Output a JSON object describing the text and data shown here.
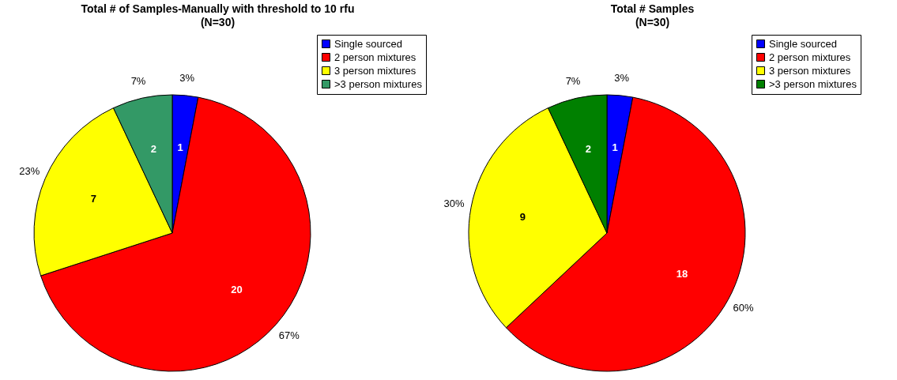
{
  "chart_data": [
    {
      "type": "pie",
      "title": "Total # of Samples-Manually with threshold to 10 rfu",
      "subtitle": "(N=30)",
      "categories": [
        "Single sourced",
        "2 person mixtures",
        "3 person mixtures",
        ">3 person mixtures"
      ],
      "values": [
        3,
        67,
        23,
        7
      ],
      "colors": [
        "#0000ff",
        "#ff0000",
        "#ffff00",
        "#339966"
      ],
      "value_labels": [
        "3%",
        "67%",
        "23%",
        "7%"
      ],
      "legend": "top right",
      "annotations": [
        {
          "text": "1",
          "x": "Single sourced"
        },
        {
          "text": "20",
          "x": "2 person mixtures"
        },
        {
          "text": "7",
          "x": "3 person mixtures"
        },
        {
          "text": "2",
          "x": ">3 person mixtures"
        }
      ]
    },
    {
      "type": "pie",
      "title": "Total # Samples",
      "subtitle": "(N=30)",
      "categories": [
        "Single sourced",
        "2 person mixtures",
        "3 person mixtures",
        ">3 person mixtures"
      ],
      "values": [
        3,
        60,
        30,
        7
      ],
      "colors": [
        "#0000ff",
        "#ff0000",
        "#ffff00",
        "#008000"
      ],
      "value_labels": [
        "3%",
        "60%",
        "30%",
        "7%"
      ],
      "legend": "top right",
      "annotations": [
        {
          "text": "1",
          "x": "Single sourced"
        },
        {
          "text": "18",
          "x": "2 person mixtures"
        },
        {
          "text": "9",
          "x": "3 person mixtures"
        },
        {
          "text": "2",
          "x": ">3 person mixtures"
        }
      ]
    }
  ]
}
